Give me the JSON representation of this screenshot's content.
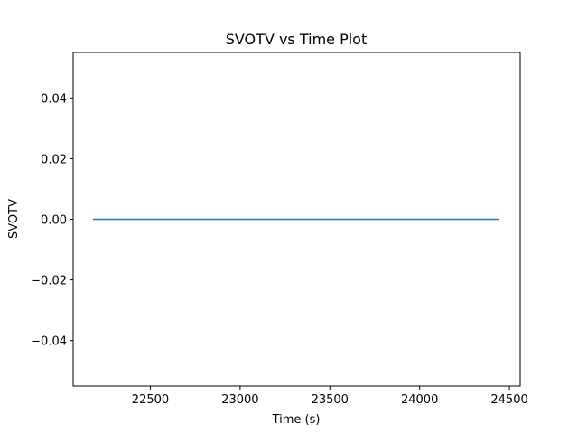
{
  "chart_data": {
    "type": "line",
    "title": "SVOTV vs Time Plot",
    "xlabel": "Time (s)",
    "ylabel": "SVOTV",
    "xlim": [
      22070,
      24560
    ],
    "ylim": [
      -0.055,
      0.055
    ],
    "xticks": [
      22500,
      23000,
      23500,
      24000,
      24500
    ],
    "xtick_labels": [
      "22500",
      "23000",
      "23500",
      "24000",
      "24500"
    ],
    "yticks": [
      -0.04,
      -0.02,
      0.0,
      0.02,
      0.04
    ],
    "ytick_labels": [
      "−0.04",
      "−0.02",
      "0.00",
      "0.02",
      "0.04"
    ],
    "grid": false,
    "series": [
      {
        "color": "#1f77b4",
        "x": [
          22180,
          24440
        ],
        "y": [
          0.0,
          0.0
        ]
      }
    ]
  }
}
